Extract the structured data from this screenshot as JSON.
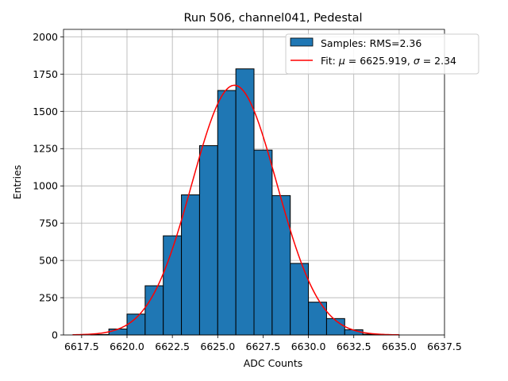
{
  "chart_data": {
    "type": "bar",
    "title": "Run 506, channel041, Pedestal",
    "xlabel": "ADC Counts",
    "ylabel": "Entries",
    "xlim": [
      6616.5,
      6637.5
    ],
    "ylim": [
      0,
      2050
    ],
    "grid": true,
    "xticks": [
      6617.5,
      6620.0,
      6622.5,
      6625.0,
      6627.5,
      6630.0,
      6632.5,
      6635.0,
      6637.5
    ],
    "xtick_labels": [
      "6617.5",
      "6620.0",
      "6622.5",
      "6625.0",
      "6627.5",
      "6630.0",
      "6632.5",
      "6635.0",
      "6637.5"
    ],
    "yticks": [
      0,
      250,
      500,
      750,
      1000,
      1250,
      1500,
      1750,
      2000
    ],
    "ytick_labels": [
      "0",
      "250",
      "500",
      "750",
      "1000",
      "1250",
      "1500",
      "1750",
      "2000"
    ],
    "bins": [
      {
        "lo": 6617.0,
        "hi": 6618.0,
        "count": 0
      },
      {
        "lo": 6618.0,
        "hi": 6619.0,
        "count": 3
      },
      {
        "lo": 6619.0,
        "hi": 6620.0,
        "count": 40
      },
      {
        "lo": 6620.0,
        "hi": 6621.0,
        "count": 140
      },
      {
        "lo": 6621.0,
        "hi": 6622.0,
        "count": 330
      },
      {
        "lo": 6622.0,
        "hi": 6623.0,
        "count": 665
      },
      {
        "lo": 6623.0,
        "hi": 6624.0,
        "count": 940
      },
      {
        "lo": 6624.0,
        "hi": 6625.0,
        "count": 1270
      },
      {
        "lo": 6625.0,
        "hi": 6626.0,
        "count": 1640
      },
      {
        "lo": 6626.0,
        "hi": 6627.0,
        "count": 1785
      },
      {
        "lo": 6627.0,
        "hi": 6628.0,
        "count": 1240
      },
      {
        "lo": 6628.0,
        "hi": 6629.0,
        "count": 935
      },
      {
        "lo": 6629.0,
        "hi": 6630.0,
        "count": 480
      },
      {
        "lo": 6630.0,
        "hi": 6631.0,
        "count": 220
      },
      {
        "lo": 6631.0,
        "hi": 6632.0,
        "count": 110
      },
      {
        "lo": 6632.0,
        "hi": 6633.0,
        "count": 35
      },
      {
        "lo": 6633.0,
        "hi": 6634.0,
        "count": 5
      },
      {
        "lo": 6634.0,
        "hi": 6635.0,
        "count": 1
      },
      {
        "lo": 6635.0,
        "hi": 6636.0,
        "count": 0
      },
      {
        "lo": 6636.0,
        "hi": 6637.0,
        "count": 0
      }
    ],
    "fit": {
      "type": "gaussian",
      "mu": 6625.919,
      "sigma": 2.34,
      "amplitude": 1675,
      "x_range": [
        6617.0,
        6635.0
      ]
    },
    "series": [
      {
        "name": "Samples: RMS=2.36",
        "kind": "histogram",
        "color": "#1f77b4",
        "edge_color": "#000000"
      },
      {
        "name": "Fit",
        "kind": "line",
        "color": "#ff0000"
      }
    ],
    "legend": {
      "placement": "top-right",
      "samples_label": "Samples: RMS=2.36",
      "fit_prefix": "Fit: ",
      "mu_symbol": "μ",
      "mu_value": " = 6625.919, ",
      "sigma_symbol": "σ",
      "sigma_value": " = 2.34"
    }
  }
}
